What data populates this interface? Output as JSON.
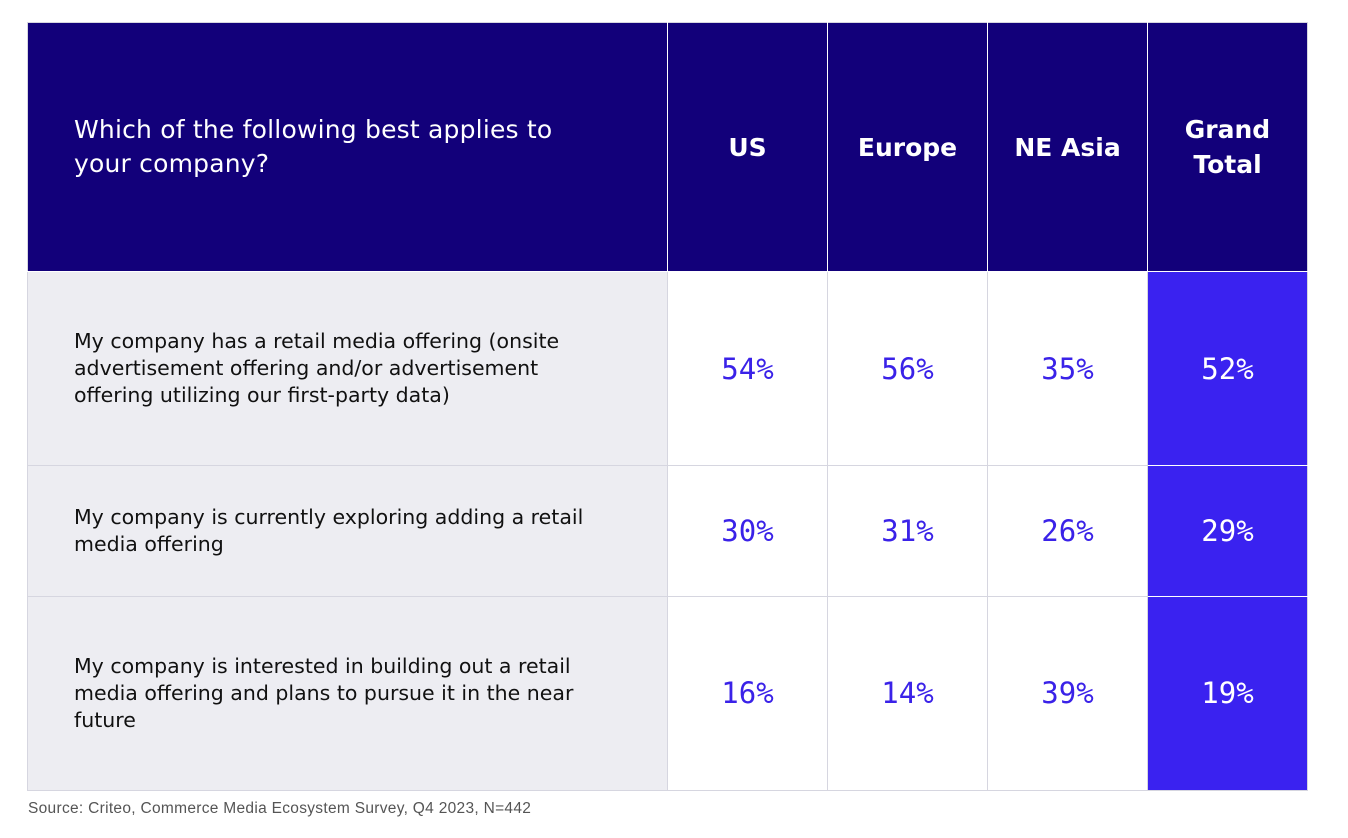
{
  "chart_data": {
    "type": "table",
    "question": "Which of the following best applies to your company?",
    "columns": [
      "US",
      "Europe",
      "NE Asia",
      "Grand Total"
    ],
    "rows": [
      {
        "label": "My company has a retail media offering (onsite advertisement offering and/or advertisement offering utilizing our first-party data)",
        "values": [
          "54%",
          "56%",
          "35%",
          "52%"
        ]
      },
      {
        "label": "My company is currently exploring adding a retail media offering",
        "values": [
          "30%",
          "31%",
          "26%",
          "29%"
        ]
      },
      {
        "label": "My company is interested in building out a retail media offering and plans to pursue it in the near future",
        "values": [
          "16%",
          "14%",
          "39%",
          "19%"
        ]
      }
    ],
    "source": "Source: Criteo, Commerce Media Ecosystem Survey, Q4 2023, N=442"
  },
  "colors": {
    "header_bg": "#12007a",
    "total_bg": "#3a22f0",
    "value_text": "#3a22e8",
    "label_bg": "#ededf2"
  }
}
